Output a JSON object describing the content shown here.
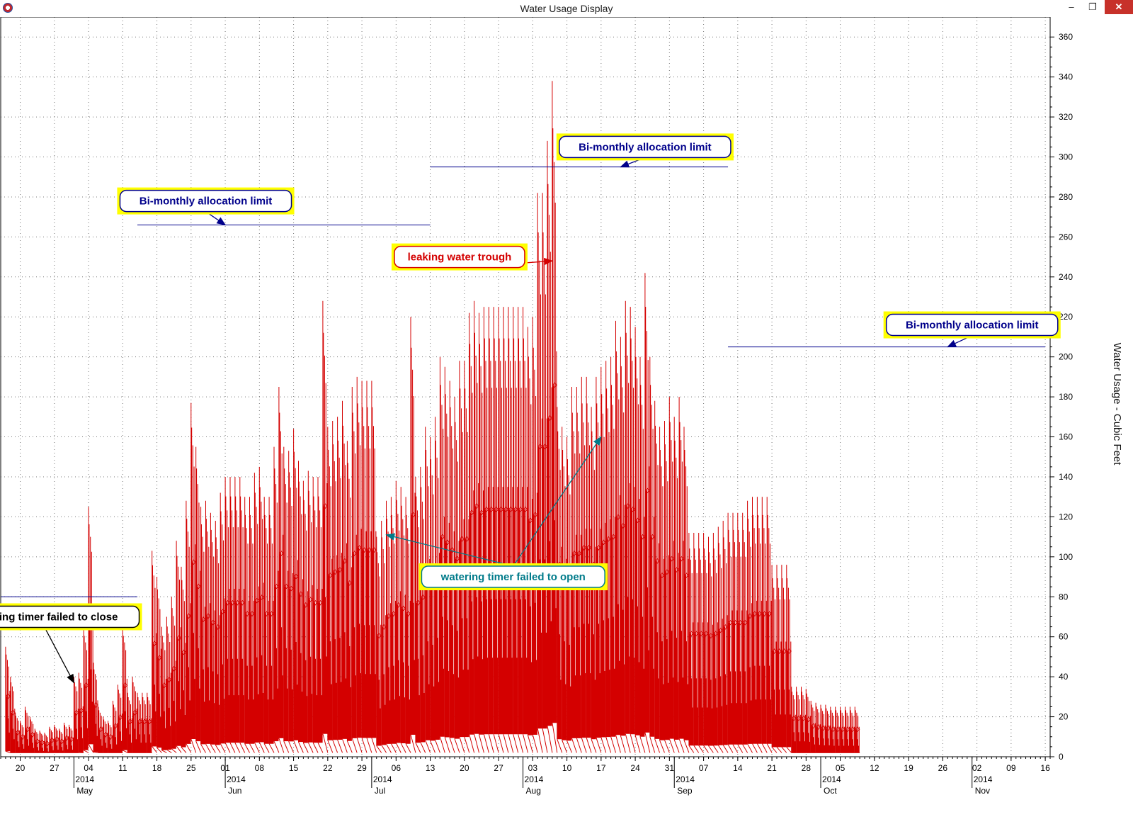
{
  "window": {
    "title": "Water Usage Display",
    "controls": {
      "minimize": "–",
      "maximize": "❐",
      "close": "✕"
    }
  },
  "chart_data": {
    "type": "bar",
    "ylabel": "Water Usage - Cubic Feet",
    "ylim": [
      0,
      370
    ],
    "yticks": [
      0,
      20,
      40,
      60,
      80,
      100,
      120,
      140,
      160,
      180,
      200,
      220,
      240,
      260,
      280,
      300,
      320,
      340,
      360
    ],
    "x_domain": [
      "2014-04-16",
      "2014-11-17"
    ],
    "grid": true,
    "series_color": "#d40000",
    "xtick_dates": [
      "2014-04-20",
      "2014-04-27",
      "2014-05-04",
      "2014-05-11",
      "2014-05-18",
      "2014-05-25",
      "2014-06-01",
      "2014-06-08",
      "2014-06-15",
      "2014-06-22",
      "2014-06-29",
      "2014-07-06",
      "2014-07-13",
      "2014-07-20",
      "2014-07-27",
      "2014-08-03",
      "2014-08-10",
      "2014-08-17",
      "2014-08-24",
      "2014-08-31",
      "2014-09-07",
      "2014-09-14",
      "2014-09-21",
      "2014-09-28",
      "2014-10-05",
      "2014-10-12",
      "2014-10-19",
      "2014-10-26",
      "2014-11-02",
      "2014-11-09",
      "2014-11-16"
    ],
    "xtick_labels": [
      "20",
      "27",
      "04",
      "11",
      "18",
      "25",
      "01",
      "08",
      "15",
      "22",
      "29",
      "06",
      "13",
      "20",
      "27",
      "03",
      "10",
      "17",
      "24",
      "31",
      "07",
      "14",
      "21",
      "28",
      "05",
      "12",
      "19",
      "26",
      "02",
      "09",
      "16"
    ],
    "month_labels": [
      {
        "date": "2014-05-01",
        "year": "2014",
        "month": "May"
      },
      {
        "date": "2014-06-01",
        "year": "2014",
        "month": "Jun"
      },
      {
        "date": "2014-07-01",
        "year": "2014",
        "month": "Jul"
      },
      {
        "date": "2014-08-01",
        "year": "2014",
        "month": "Aug"
      },
      {
        "date": "2014-09-01",
        "year": "2014",
        "month": "Sep"
      },
      {
        "date": "2014-10-01",
        "year": "2014",
        "month": "Oct"
      },
      {
        "date": "2014-11-01",
        "year": "2014",
        "month": "Nov"
      }
    ],
    "daily_peaks": [
      [
        "2014-04-17",
        55
      ],
      [
        "2014-04-18",
        40
      ],
      [
        "2014-04-19",
        22
      ],
      [
        "2014-04-20",
        18
      ],
      [
        "2014-04-21",
        25
      ],
      [
        "2014-04-22",
        20
      ],
      [
        "2014-04-23",
        14
      ],
      [
        "2014-04-24",
        13
      ],
      [
        "2014-04-25",
        12
      ],
      [
        "2014-04-26",
        15
      ],
      [
        "2014-04-27",
        16
      ],
      [
        "2014-04-28",
        14
      ],
      [
        "2014-04-29",
        17
      ],
      [
        "2014-04-30",
        16
      ],
      [
        "2014-05-01",
        40
      ],
      [
        "2014-05-02",
        42
      ],
      [
        "2014-05-03",
        65
      ],
      [
        "2014-05-04",
        125
      ],
      [
        "2014-05-05",
        47
      ],
      [
        "2014-05-06",
        25
      ],
      [
        "2014-05-07",
        20
      ],
      [
        "2014-05-08",
        18
      ],
      [
        "2014-05-09",
        28
      ],
      [
        "2014-05-10",
        36
      ],
      [
        "2014-05-11",
        65
      ],
      [
        "2014-05-12",
        32
      ],
      [
        "2014-05-13",
        40
      ],
      [
        "2014-05-14",
        32
      ],
      [
        "2014-05-15",
        32
      ],
      [
        "2014-05-16",
        32
      ],
      [
        "2014-05-17",
        103
      ],
      [
        "2014-05-18",
        90
      ],
      [
        "2014-05-19",
        65
      ],
      [
        "2014-05-20",
        70
      ],
      [
        "2014-05-21",
        80
      ],
      [
        "2014-05-22",
        108
      ],
      [
        "2014-05-23",
        95
      ],
      [
        "2014-05-24",
        128
      ],
      [
        "2014-05-25",
        177
      ],
      [
        "2014-05-26",
        155
      ],
      [
        "2014-05-27",
        125
      ],
      [
        "2014-05-28",
        128
      ],
      [
        "2014-05-29",
        122
      ],
      [
        "2014-05-30",
        118
      ],
      [
        "2014-05-31",
        132
      ],
      [
        "2014-06-01",
        140
      ],
      [
        "2014-06-02",
        140
      ],
      [
        "2014-06-03",
        140
      ],
      [
        "2014-06-04",
        140
      ],
      [
        "2014-06-05",
        130
      ],
      [
        "2014-06-06",
        130
      ],
      [
        "2014-06-07",
        142
      ],
      [
        "2014-06-08",
        145
      ],
      [
        "2014-06-09",
        130
      ],
      [
        "2014-06-10",
        130
      ],
      [
        "2014-06-11",
        155
      ],
      [
        "2014-06-12",
        185
      ],
      [
        "2014-06-13",
        155
      ],
      [
        "2014-06-14",
        153
      ],
      [
        "2014-06-15",
        164
      ],
      [
        "2014-06-16",
        148
      ],
      [
        "2014-06-17",
        138
      ],
      [
        "2014-06-18",
        143
      ],
      [
        "2014-06-19",
        140
      ],
      [
        "2014-06-20",
        140
      ],
      [
        "2014-06-21",
        228
      ],
      [
        "2014-06-22",
        165
      ],
      [
        "2014-06-23",
        168
      ],
      [
        "2014-06-24",
        170
      ],
      [
        "2014-06-25",
        178
      ],
      [
        "2014-06-26",
        158
      ],
      [
        "2014-06-27",
        185
      ],
      [
        "2014-06-28",
        190
      ],
      [
        "2014-06-29",
        188
      ],
      [
        "2014-06-30",
        188
      ],
      [
        "2014-07-01",
        188
      ],
      [
        "2014-07-02",
        110
      ],
      [
        "2014-07-03",
        118
      ],
      [
        "2014-07-04",
        128
      ],
      [
        "2014-07-05",
        130
      ],
      [
        "2014-07-06",
        138
      ],
      [
        "2014-07-07",
        135
      ],
      [
        "2014-07-08",
        130
      ],
      [
        "2014-07-09",
        220
      ],
      [
        "2014-07-10",
        140
      ],
      [
        "2014-07-11",
        145
      ],
      [
        "2014-07-12",
        165
      ],
      [
        "2014-07-13",
        160
      ],
      [
        "2014-07-14",
        170
      ],
      [
        "2014-07-15",
        200
      ],
      [
        "2014-07-16",
        195
      ],
      [
        "2014-07-17",
        188
      ],
      [
        "2014-07-18",
        180
      ],
      [
        "2014-07-19",
        198
      ],
      [
        "2014-07-20",
        198
      ],
      [
        "2014-07-21",
        222
      ],
      [
        "2014-07-22",
        228
      ],
      [
        "2014-07-23",
        222
      ],
      [
        "2014-07-24",
        225
      ],
      [
        "2014-07-25",
        225
      ],
      [
        "2014-07-26",
        225
      ],
      [
        "2014-07-27",
        225
      ],
      [
        "2014-07-28",
        225
      ],
      [
        "2014-07-29",
        225
      ],
      [
        "2014-07-30",
        225
      ],
      [
        "2014-07-31",
        225
      ],
      [
        "2014-08-01",
        225
      ],
      [
        "2014-08-02",
        215
      ],
      [
        "2014-08-03",
        220
      ],
      [
        "2014-08-04",
        282
      ],
      [
        "2014-08-05",
        282
      ],
      [
        "2014-08-06",
        308
      ],
      [
        "2014-08-07",
        338
      ],
      [
        "2014-08-08",
        175
      ],
      [
        "2014-08-09",
        165
      ],
      [
        "2014-08-10",
        160
      ],
      [
        "2014-08-11",
        185
      ],
      [
        "2014-08-12",
        185
      ],
      [
        "2014-08-13",
        190
      ],
      [
        "2014-08-14",
        190
      ],
      [
        "2014-08-15",
        175
      ],
      [
        "2014-08-16",
        190
      ],
      [
        "2014-08-17",
        195
      ],
      [
        "2014-08-18",
        198
      ],
      [
        "2014-08-19",
        200
      ],
      [
        "2014-08-20",
        218
      ],
      [
        "2014-08-21",
        210
      ],
      [
        "2014-08-22",
        228
      ],
      [
        "2014-08-23",
        225
      ],
      [
        "2014-08-24",
        215
      ],
      [
        "2014-08-25",
        200
      ],
      [
        "2014-08-26",
        242
      ],
      [
        "2014-08-27",
        200
      ],
      [
        "2014-08-28",
        178
      ],
      [
        "2014-08-29",
        165
      ],
      [
        "2014-08-30",
        168
      ],
      [
        "2014-08-31",
        180
      ],
      [
        "2014-09-01",
        170
      ],
      [
        "2014-09-02",
        180
      ],
      [
        "2014-09-03",
        165
      ],
      [
        "2014-09-04",
        112
      ],
      [
        "2014-09-05",
        112
      ],
      [
        "2014-09-06",
        112
      ],
      [
        "2014-09-07",
        112
      ],
      [
        "2014-09-08",
        110
      ],
      [
        "2014-09-09",
        112
      ],
      [
        "2014-09-10",
        115
      ],
      [
        "2014-09-11",
        118
      ],
      [
        "2014-09-12",
        122
      ],
      [
        "2014-09-13",
        122
      ],
      [
        "2014-09-14",
        122
      ],
      [
        "2014-09-15",
        122
      ],
      [
        "2014-09-16",
        128
      ],
      [
        "2014-09-17",
        130
      ],
      [
        "2014-09-18",
        130
      ],
      [
        "2014-09-19",
        130
      ],
      [
        "2014-09-20",
        130
      ],
      [
        "2014-09-21",
        96
      ],
      [
        "2014-09-22",
        96
      ],
      [
        "2014-09-23",
        96
      ],
      [
        "2014-09-24",
        96
      ],
      [
        "2014-09-25",
        35
      ],
      [
        "2014-09-26",
        35
      ],
      [
        "2014-09-27",
        35
      ],
      [
        "2014-09-28",
        34
      ],
      [
        "2014-09-29",
        28
      ],
      [
        "2014-09-30",
        27
      ],
      [
        "2014-10-01",
        26
      ],
      [
        "2014-10-02",
        26
      ],
      [
        "2014-10-03",
        25
      ],
      [
        "2014-10-04",
        25
      ],
      [
        "2014-10-05",
        25
      ],
      [
        "2014-10-06",
        25
      ],
      [
        "2014-10-07",
        25
      ],
      [
        "2014-10-08",
        25
      ]
    ],
    "limit_lines": [
      {
        "start": "2014-04-16",
        "end": "2014-05-14",
        "value": 80
      },
      {
        "start": "2014-05-14",
        "end": "2014-07-13",
        "value": 266
      },
      {
        "start": "2014-07-13",
        "end": "2014-09-12",
        "value": 295
      },
      {
        "start": "2014-09-12",
        "end": "2014-11-16",
        "value": 205
      }
    ],
    "annotations": [
      {
        "text": "watering timer failed to close",
        "color": "#000000",
        "box_at": [
          "2014-04-25",
          70
        ],
        "targets": [
          [
            "2014-05-01",
            37
          ]
        ]
      },
      {
        "text": "Bi-monthly allocation limit",
        "color": "#00008b",
        "box_at": [
          "2014-05-28",
          278
        ],
        "targets": [
          [
            "2014-06-01",
            266
          ]
        ]
      },
      {
        "text": "leaking water trough",
        "color": "#d40000",
        "box_at": [
          "2014-07-19",
          250
        ],
        "targets": [
          [
            "2014-08-07",
            248
          ]
        ]
      },
      {
        "text": "Bi-monthly allocation limit",
        "color": "#00008b",
        "box_at": [
          "2014-08-26",
          305
        ],
        "targets": [
          [
            "2014-08-21",
            295
          ]
        ]
      },
      {
        "text": "watering timer failed to open",
        "color": "#007b8a",
        "box_at": [
          "2014-07-30",
          90
        ],
        "targets": [
          [
            "2014-07-04",
            111
          ],
          [
            "2014-08-17",
            160
          ]
        ]
      },
      {
        "text": "Bi-monthly allocation limit",
        "color": "#00008b",
        "box_at": [
          "2014-11-01",
          216
        ],
        "targets": [
          [
            "2014-10-27",
            205
          ]
        ]
      }
    ]
  }
}
